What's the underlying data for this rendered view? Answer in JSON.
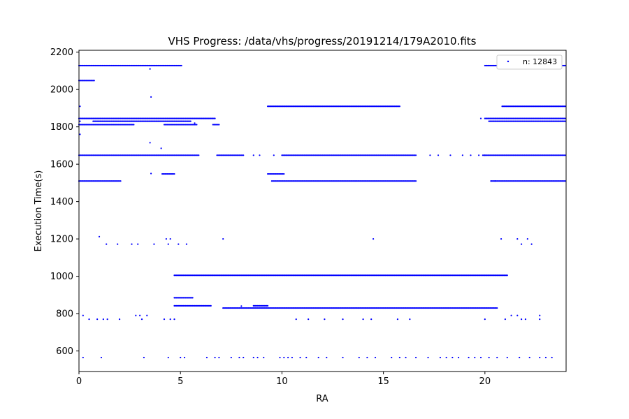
{
  "chart_data": {
    "type": "scatter",
    "title": "VHS Progress: /data/vhs/progress/20191214/179A2010.fits",
    "xlabel": "RA",
    "ylabel": "Execution Time(s)",
    "xlim": [
      0,
      24
    ],
    "ylim": [
      490,
      2210
    ],
    "x_ticks": [
      0,
      5,
      10,
      15,
      20
    ],
    "y_ticks": [
      600,
      800,
      1000,
      1200,
      1400,
      1600,
      1800,
      2000,
      2200
    ],
    "grid": false,
    "legend": {
      "position": "top-right",
      "entries": [
        "n: 12843"
      ]
    },
    "series": [
      {
        "name": "n: 12843",
        "color": "#0000ff",
        "bands": [
          {
            "y": 2128,
            "x_segments": [
              [
                0,
                5.05
              ],
              [
                20.0,
                24
              ]
            ]
          },
          {
            "y": 2048,
            "x_segments": [
              [
                0,
                0.75
              ]
            ]
          },
          {
            "y": 1910,
            "x_segments": [
              [
                9.3,
                15.8
              ],
              [
                20.85,
                24
              ]
            ]
          },
          {
            "y": 1845,
            "x_segments": [
              [
                0,
                6.7
              ],
              [
                20.0,
                24
              ]
            ]
          },
          {
            "y": 1830,
            "x_segments": [
              [
                0.7,
                5.5
              ],
              [
                20.2,
                24
              ]
            ]
          },
          {
            "y": 1812,
            "x_segments": [
              [
                0,
                2.7
              ],
              [
                4.2,
                5.8
              ],
              [
                6.6,
                6.9
              ]
            ]
          },
          {
            "y": 1648,
            "x_segments": [
              [
                0,
                5.9
              ],
              [
                6.8,
                8.1
              ],
              [
                10.0,
                16.6
              ],
              [
                19.9,
                24
              ]
            ]
          },
          {
            "y": 1548,
            "x_segments": [
              [
                4.1,
                4.7
              ],
              [
                9.3,
                10.1
              ]
            ]
          },
          {
            "y": 1510,
            "x_segments": [
              [
                0,
                2.05
              ],
              [
                9.5,
                16.6
              ],
              [
                20.3,
                24
              ]
            ]
          },
          {
            "y": 1005,
            "x_segments": [
              [
                4.7,
                21.1
              ]
            ]
          },
          {
            "y": 885,
            "x_segments": [
              [
                4.7,
                5.6
              ]
            ]
          },
          {
            "y": 842,
            "x_segments": [
              [
                4.7,
                6.5
              ],
              [
                8.6,
                9.3
              ]
            ]
          },
          {
            "y": 830,
            "x_segments": [
              [
                7.1,
                20.6
              ]
            ]
          }
        ],
        "points": [
          [
            0.05,
            1910
          ],
          [
            0.05,
            1760
          ],
          [
            0.05,
            1830
          ],
          [
            3.5,
            2110
          ],
          [
            3.55,
            1960
          ],
          [
            3.5,
            1715
          ],
          [
            4.05,
            1685
          ],
          [
            3.55,
            1550
          ],
          [
            5.7,
            1820
          ],
          [
            8.6,
            1648
          ],
          [
            8.9,
            1648
          ],
          [
            9.6,
            1648
          ],
          [
            17.3,
            1648
          ],
          [
            17.7,
            1648
          ],
          [
            18.3,
            1648
          ],
          [
            18.9,
            1648
          ],
          [
            19.3,
            1648
          ],
          [
            19.7,
            1648
          ],
          [
            20.0,
            1648
          ],
          [
            19.8,
            1845
          ],
          [
            20.3,
            1510
          ],
          [
            20.5,
            1510
          ],
          [
            1.0,
            1212
          ],
          [
            1.35,
            1172
          ],
          [
            1.9,
            1172
          ],
          [
            2.6,
            1172
          ],
          [
            2.9,
            1172
          ],
          [
            3.7,
            1172
          ],
          [
            4.3,
            1200
          ],
          [
            4.5,
            1200
          ],
          [
            4.4,
            1172
          ],
          [
            4.9,
            1172
          ],
          [
            5.3,
            1172
          ],
          [
            7.1,
            1200
          ],
          [
            14.5,
            1200
          ],
          [
            20.8,
            1200
          ],
          [
            21.6,
            1200
          ],
          [
            22.1,
            1200
          ],
          [
            21.8,
            1172
          ],
          [
            22.3,
            1172
          ],
          [
            0.2,
            790
          ],
          [
            0.5,
            770
          ],
          [
            0.9,
            770
          ],
          [
            1.2,
            770
          ],
          [
            1.4,
            770
          ],
          [
            2.0,
            770
          ],
          [
            2.8,
            790
          ],
          [
            3.0,
            790
          ],
          [
            3.1,
            770
          ],
          [
            3.35,
            790
          ],
          [
            4.2,
            770
          ],
          [
            4.5,
            770
          ],
          [
            4.7,
            770
          ],
          [
            8.0,
            840
          ],
          [
            10.7,
            770
          ],
          [
            11.3,
            770
          ],
          [
            12.1,
            770
          ],
          [
            13.0,
            770
          ],
          [
            14.0,
            770
          ],
          [
            14.4,
            770
          ],
          [
            15.7,
            770
          ],
          [
            16.3,
            770
          ],
          [
            20.0,
            770
          ],
          [
            21.0,
            770
          ],
          [
            21.3,
            790
          ],
          [
            21.6,
            790
          ],
          [
            21.8,
            770
          ],
          [
            22.0,
            770
          ],
          [
            22.7,
            790
          ],
          [
            22.7,
            770
          ],
          [
            0.2,
            565
          ],
          [
            1.1,
            565
          ],
          [
            3.2,
            565
          ],
          [
            4.4,
            565
          ],
          [
            5.0,
            565
          ],
          [
            5.2,
            565
          ],
          [
            6.3,
            565
          ],
          [
            6.7,
            565
          ],
          [
            6.9,
            565
          ],
          [
            7.5,
            565
          ],
          [
            7.9,
            565
          ],
          [
            8.1,
            565
          ],
          [
            8.6,
            565
          ],
          [
            8.8,
            565
          ],
          [
            9.1,
            565
          ],
          [
            9.9,
            565
          ],
          [
            10.1,
            565
          ],
          [
            10.3,
            565
          ],
          [
            10.5,
            565
          ],
          [
            10.9,
            565
          ],
          [
            11.2,
            565
          ],
          [
            11.8,
            565
          ],
          [
            12.2,
            565
          ],
          [
            13.0,
            565
          ],
          [
            13.8,
            565
          ],
          [
            14.2,
            565
          ],
          [
            14.6,
            565
          ],
          [
            15.4,
            565
          ],
          [
            15.8,
            565
          ],
          [
            16.1,
            565
          ],
          [
            16.6,
            565
          ],
          [
            17.2,
            565
          ],
          [
            17.8,
            565
          ],
          [
            18.1,
            565
          ],
          [
            18.4,
            565
          ],
          [
            18.7,
            565
          ],
          [
            19.2,
            565
          ],
          [
            19.5,
            565
          ],
          [
            19.8,
            565
          ],
          [
            20.2,
            565
          ],
          [
            20.6,
            565
          ],
          [
            21.1,
            565
          ],
          [
            21.7,
            565
          ],
          [
            22.2,
            565
          ],
          [
            22.7,
            565
          ],
          [
            23.0,
            565
          ],
          [
            23.3,
            565
          ]
        ]
      }
    ]
  }
}
